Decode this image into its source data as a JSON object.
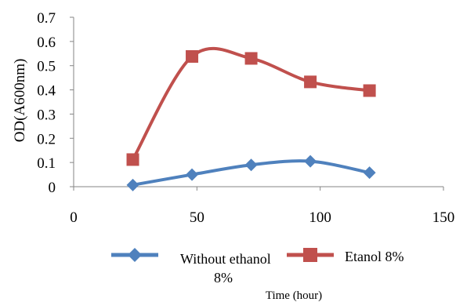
{
  "chart_data": {
    "type": "line",
    "xlabel": "Time (hour)",
    "ylabel": "OD(A600nm)",
    "xlim": [
      0,
      150
    ],
    "ylim": [
      0,
      0.7
    ],
    "x_ticks": [
      "0",
      "50",
      "100",
      "150"
    ],
    "y_ticks": [
      "0",
      "0.1",
      "0.2",
      "0.3",
      "0.4",
      "0.5",
      "0.6",
      "0.7"
    ],
    "x_tick_values": [
      0,
      50,
      100,
      150
    ],
    "y_tick_values": [
      0,
      0.1,
      0.2,
      0.3,
      0.4,
      0.5,
      0.6,
      0.7
    ],
    "smooth": true,
    "grid": false,
    "legend_position": "bottom",
    "series": [
      {
        "name": "Without ethanol 8%",
        "legend_line1": "Without ethanol",
        "legend_line2": "8%",
        "color": "#4F81BD",
        "marker": "diamond",
        "x": [
          24,
          48,
          72,
          96,
          120
        ],
        "y": [
          0.007,
          0.05,
          0.09,
          0.105,
          0.058
        ]
      },
      {
        "name": "Etanol 8%",
        "legend_line1": "Etanol 8%",
        "color": "#C0504D",
        "marker": "square",
        "x": [
          24,
          48,
          72,
          96,
          120
        ],
        "y": [
          0.112,
          0.538,
          0.53,
          0.433,
          0.397
        ]
      }
    ]
  }
}
